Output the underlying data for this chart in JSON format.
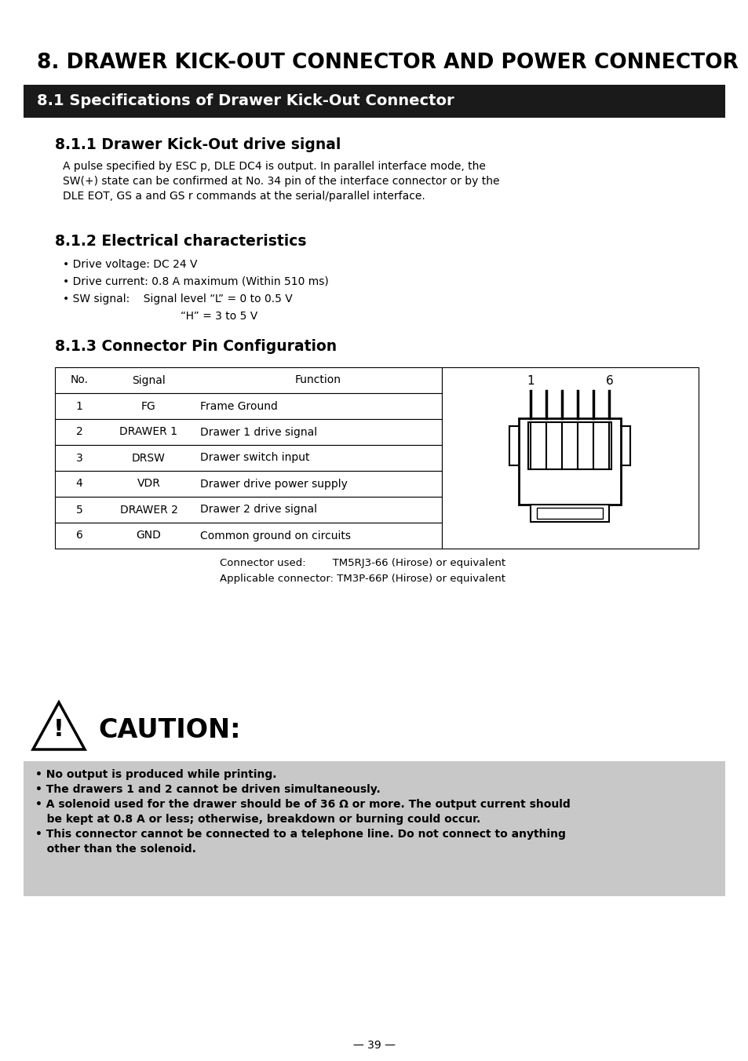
{
  "page_title": "8. DRAWER KICK-OUT CONNECTOR AND POWER CONNECTOR",
  "section_header": "8.1 Specifications of Drawer Kick-Out Connector",
  "subsection1_title": "8.1.1 Drawer Kick-Out drive signal",
  "subsection1_body_lines": [
    "A pulse specified by ESC p, DLE DC4 is output. In parallel interface mode, the",
    "SW(+) state can be confirmed at No. 34 pin of the interface connector or by the",
    "DLE EOT, GS a and GS r commands at the serial/parallel interface."
  ],
  "subsection2_title": "8.1.2 Electrical characteristics",
  "subsection2_bullets": [
    "Drive voltage: DC 24 V",
    "Drive current: 0.8 A maximum (Within 510 ms)",
    "SW signal:    Signal level “L” = 0 to 0.5 V"
  ],
  "subsection2_extra": "“H” = 3 to 5 V",
  "subsection2_extra_indent": 230,
  "subsection3_title": "8.1.3 Connector Pin Configuration",
  "table_headers": [
    "No.",
    "Signal",
    "Function"
  ],
  "table_rows": [
    [
      "1",
      "FG",
      "Frame Ground"
    ],
    [
      "2",
      "DRAWER 1",
      "Drawer 1 drive signal"
    ],
    [
      "3",
      "DRSW",
      "Drawer switch input"
    ],
    [
      "4",
      "VDR",
      "Drawer drive power supply"
    ],
    [
      "5",
      "DRAWER 2",
      "Drawer 2 drive signal"
    ],
    [
      "6",
      "GND",
      "Common ground on circuits"
    ]
  ],
  "connector_note1_label": "Connector used:",
  "connector_note1_value": "TM5RJ3-66 (Hirose) or equivalent",
  "connector_note2": "Applicable connector: TM3P-66P (Hirose) or equivalent",
  "caution_title": "CAUTION:",
  "caution_bullets": [
    "• No output is produced while printing.",
    "• The drawers 1 and 2 cannot be driven simultaneously.",
    "• A solenoid used for the drawer should be of 36 Ω or more. The output current should\n   be kept at 0.8 A or less; otherwise, breakdown or burning could occur.",
    "• This connector cannot be connected to a telephone line. Do not connect to anything\n   other than the solenoid."
  ],
  "page_number": "— 39 —",
  "bg_color": "#ffffff",
  "header_bg": "#1a1a1a",
  "header_text_color": "#ffffff",
  "caution_bg": "#c8c8c8",
  "table_border_color": "#000000",
  "text_color": "#000000"
}
